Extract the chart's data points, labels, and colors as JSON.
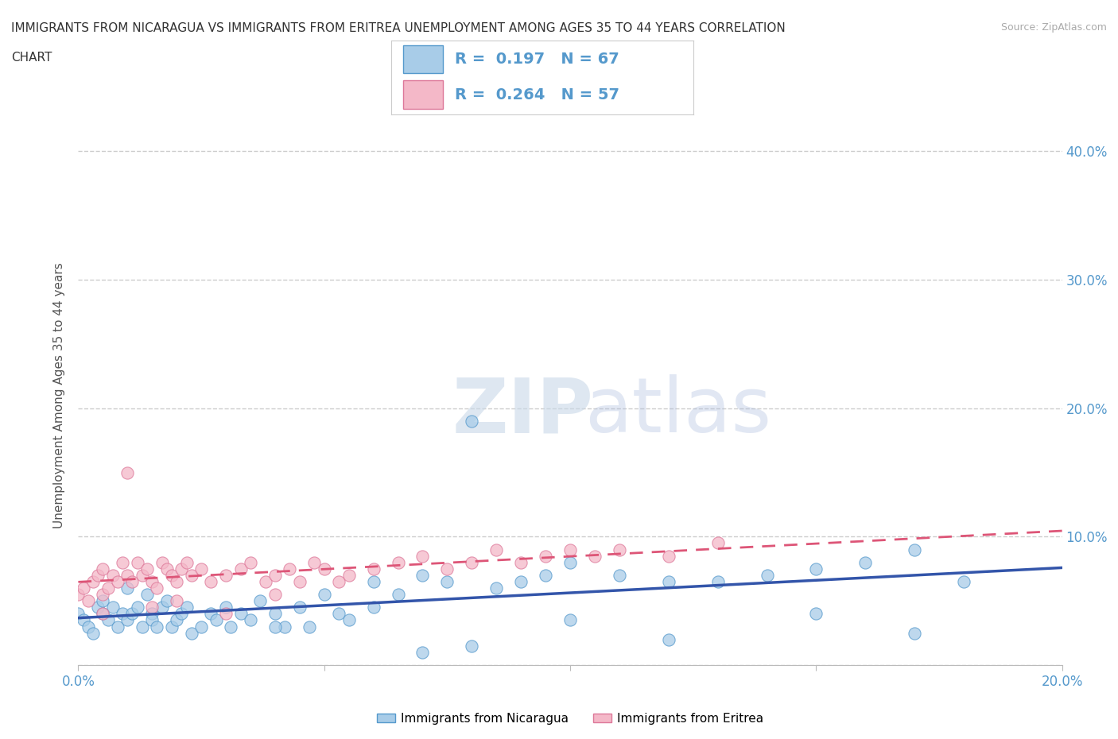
{
  "title_line1": "IMMIGRANTS FROM NICARAGUA VS IMMIGRANTS FROM ERITREA UNEMPLOYMENT AMONG AGES 35 TO 44 YEARS CORRELATION",
  "title_line2": "CHART",
  "source": "Source: ZipAtlas.com",
  "ylabel": "Unemployment Among Ages 35 to 44 years",
  "xlim": [
    0.0,
    0.2
  ],
  "ylim": [
    0.0,
    0.42
  ],
  "nicaragua_color": "#a8cce8",
  "nicaragua_edge": "#5599cc",
  "eritrea_color": "#f4b8c8",
  "eritrea_edge": "#dd7799",
  "nicaragua_R": 0.197,
  "nicaragua_N": 67,
  "eritrea_R": 0.264,
  "eritrea_N": 57,
  "legend_label_nicaragua": "Immigrants from Nicaragua",
  "legend_label_eritrea": "Immigrants from Eritrea",
  "watermark_zip": "ZIP",
  "watermark_atlas": "atlas",
  "background_color": "#ffffff",
  "grid_color": "#cccccc",
  "tick_color": "#5599cc",
  "trendline_nicaragua_color": "#3355aa",
  "trendline_eritrea_color": "#dd5577",
  "nicaragua_x": [
    0.0,
    0.001,
    0.002,
    0.003,
    0.004,
    0.005,
    0.005,
    0.006,
    0.007,
    0.008,
    0.009,
    0.01,
    0.01,
    0.011,
    0.012,
    0.013,
    0.014,
    0.015,
    0.015,
    0.016,
    0.017,
    0.018,
    0.019,
    0.02,
    0.021,
    0.022,
    0.023,
    0.025,
    0.027,
    0.028,
    0.03,
    0.031,
    0.033,
    0.035,
    0.037,
    0.04,
    0.042,
    0.045,
    0.047,
    0.05,
    0.053,
    0.055,
    0.06,
    0.065,
    0.07,
    0.075,
    0.08,
    0.085,
    0.09,
    0.095,
    0.1,
    0.11,
    0.12,
    0.13,
    0.14,
    0.15,
    0.16,
    0.17,
    0.04,
    0.06,
    0.07,
    0.08,
    0.1,
    0.12,
    0.15,
    0.17,
    0.18
  ],
  "nicaragua_y": [
    0.04,
    0.035,
    0.03,
    0.025,
    0.045,
    0.04,
    0.05,
    0.035,
    0.045,
    0.03,
    0.04,
    0.035,
    0.06,
    0.04,
    0.045,
    0.03,
    0.055,
    0.04,
    0.035,
    0.03,
    0.045,
    0.05,
    0.03,
    0.035,
    0.04,
    0.045,
    0.025,
    0.03,
    0.04,
    0.035,
    0.045,
    0.03,
    0.04,
    0.035,
    0.05,
    0.04,
    0.03,
    0.045,
    0.03,
    0.055,
    0.04,
    0.035,
    0.065,
    0.055,
    0.07,
    0.065,
    0.19,
    0.06,
    0.065,
    0.07,
    0.08,
    0.07,
    0.065,
    0.065,
    0.07,
    0.075,
    0.08,
    0.09,
    0.03,
    0.045,
    0.01,
    0.015,
    0.035,
    0.02,
    0.04,
    0.025,
    0.065
  ],
  "eritrea_x": [
    0.0,
    0.001,
    0.002,
    0.003,
    0.004,
    0.005,
    0.005,
    0.006,
    0.007,
    0.008,
    0.009,
    0.01,
    0.011,
    0.012,
    0.013,
    0.014,
    0.015,
    0.016,
    0.017,
    0.018,
    0.019,
    0.02,
    0.021,
    0.022,
    0.023,
    0.025,
    0.027,
    0.03,
    0.033,
    0.035,
    0.038,
    0.04,
    0.043,
    0.045,
    0.048,
    0.05,
    0.053,
    0.055,
    0.06,
    0.065,
    0.07,
    0.075,
    0.08,
    0.085,
    0.09,
    0.095,
    0.1,
    0.105,
    0.11,
    0.12,
    0.13,
    0.005,
    0.01,
    0.015,
    0.02,
    0.03,
    0.04
  ],
  "eritrea_y": [
    0.055,
    0.06,
    0.05,
    0.065,
    0.07,
    0.055,
    0.075,
    0.06,
    0.07,
    0.065,
    0.08,
    0.07,
    0.065,
    0.08,
    0.07,
    0.075,
    0.065,
    0.06,
    0.08,
    0.075,
    0.07,
    0.065,
    0.075,
    0.08,
    0.07,
    0.075,
    0.065,
    0.07,
    0.075,
    0.08,
    0.065,
    0.07,
    0.075,
    0.065,
    0.08,
    0.075,
    0.065,
    0.07,
    0.075,
    0.08,
    0.085,
    0.075,
    0.08,
    0.09,
    0.08,
    0.085,
    0.09,
    0.085,
    0.09,
    0.085,
    0.095,
    0.04,
    0.15,
    0.045,
    0.05,
    0.04,
    0.055
  ]
}
